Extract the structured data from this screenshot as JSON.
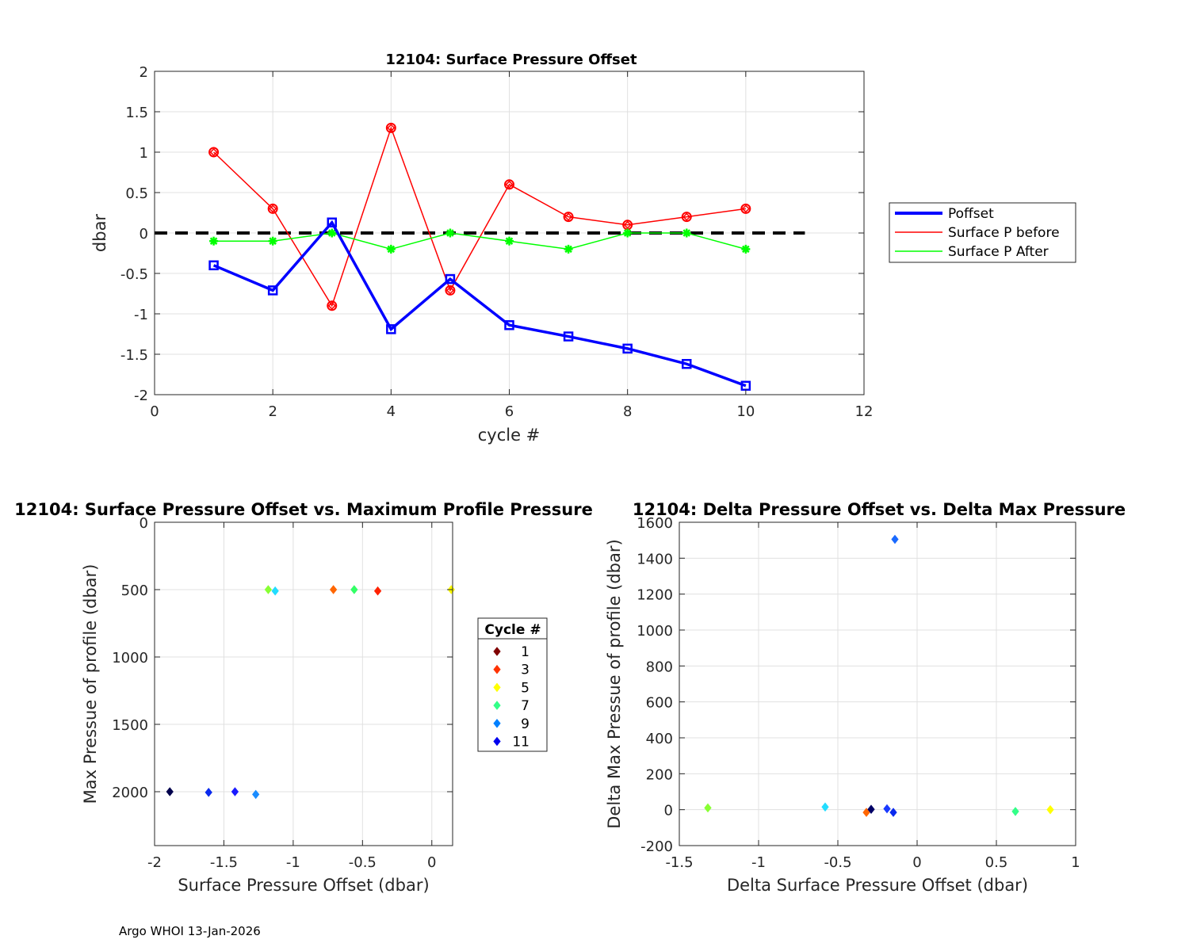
{
  "chart_data": [
    {
      "type": "line",
      "title": "12104: Surface Pressure Offset",
      "xlabel": "cycle #",
      "ylabel": "dbar",
      "xlim": [
        0,
        12
      ],
      "ylim": [
        -2,
        2
      ],
      "xticks": [
        0,
        2,
        4,
        6,
        8,
        10,
        12
      ],
      "yticks": [
        -2,
        -1.5,
        -1,
        -0.5,
        0,
        0.5,
        1,
        1.5,
        2
      ],
      "grid": true,
      "legend_position": "right",
      "zero_line": {
        "from_x": 0,
        "to_x": 11,
        "y": 0,
        "color": "#000000",
        "style": "dashed"
      },
      "series": [
        {
          "name": "Poffset",
          "color": "#0000ff",
          "marker": "square",
          "x": [
            1,
            2,
            3,
            4,
            5,
            6,
            7,
            8,
            9,
            10
          ],
          "y": [
            -0.4,
            -0.71,
            0.13,
            -1.19,
            -0.57,
            -1.14,
            -1.28,
            -1.43,
            -1.62,
            -1.89
          ]
        },
        {
          "name": "Surface P before",
          "color": "#ff0000",
          "marker": "diamond",
          "x": [
            1,
            2,
            3,
            4,
            5,
            6,
            7,
            8,
            9,
            10
          ],
          "y": [
            1.0,
            0.3,
            -0.9,
            1.3,
            -0.71,
            0.6,
            0.2,
            0.1,
            0.2,
            0.3
          ]
        },
        {
          "name": "Surface P After",
          "color": "#00ff00",
          "marker": "asterisk",
          "x": [
            1,
            2,
            3,
            4,
            5,
            6,
            7,
            8,
            9,
            10
          ],
          "y": [
            -0.1,
            -0.1,
            0.0,
            -0.2,
            0.0,
            -0.1,
            -0.2,
            0.0,
            0.0,
            -0.2
          ]
        }
      ]
    },
    {
      "type": "scatter",
      "title": "12104: Surface Pressure Offset vs. Maximum Profile Pressure",
      "xlabel": "Surface Pressure Offset (dbar)",
      "ylabel": "Max Pressue of profile (dbar)",
      "xlim": [
        -2,
        0.15
      ],
      "ylim": [
        0,
        2400
      ],
      "y_reversed": true,
      "xticks": [
        -2,
        -1.5,
        -1,
        -0.5,
        0
      ],
      "yticks": [
        0,
        500,
        1000,
        1500,
        2000
      ],
      "grid": true,
      "legend_title": "Cycle #",
      "legend_entries": [
        {
          "label": "1",
          "color": "#800000"
        },
        {
          "label": "3",
          "color": "#ff3300"
        },
        {
          "label": "5",
          "color": "#ffff00"
        },
        {
          "label": "7",
          "color": "#33ff88"
        },
        {
          "label": "9",
          "color": "#0080ff"
        },
        {
          "label": "11",
          "color": "#0000ee"
        }
      ],
      "points": [
        {
          "x": -0.39,
          "y": 510,
          "color": "#ff2200"
        },
        {
          "x": -0.71,
          "y": 500,
          "color": "#ff6600"
        },
        {
          "x": 0.14,
          "y": 500,
          "color": "#ffff00"
        },
        {
          "x": -0.56,
          "y": 500,
          "color": "#33ff66"
        },
        {
          "x": -1.18,
          "y": 500,
          "color": "#88ff33"
        },
        {
          "x": -1.13,
          "y": 510,
          "color": "#22ddff"
        },
        {
          "x": -1.27,
          "y": 2020,
          "color": "#1a8cff"
        },
        {
          "x": -1.42,
          "y": 2000,
          "color": "#1a1aff"
        },
        {
          "x": -1.61,
          "y": 2005,
          "color": "#0a2aee"
        },
        {
          "x": -1.89,
          "y": 2000,
          "color": "#00004d"
        }
      ]
    },
    {
      "type": "scatter",
      "title": "12104: Delta Pressure Offset vs. Delta Max Pressure",
      "xlabel": "Delta Surface Pressure Offset (dbar)",
      "ylabel": "Delta Max Pressue of profile (dbar)",
      "xlim": [
        -1.5,
        1
      ],
      "ylim": [
        -200,
        1600
      ],
      "xticks": [
        -1.5,
        -1,
        -0.5,
        0,
        0.5,
        1
      ],
      "yticks": [
        -200,
        0,
        200,
        400,
        600,
        800,
        1000,
        1200,
        1400,
        1600
      ],
      "grid": true,
      "points": [
        {
          "x": -0.14,
          "y": 1505,
          "color": "#1a6aff"
        },
        {
          "x": -1.32,
          "y": 10,
          "color": "#88ff33"
        },
        {
          "x": -0.58,
          "y": 15,
          "color": "#22ddff"
        },
        {
          "x": -0.32,
          "y": -15,
          "color": "#ff6600"
        },
        {
          "x": -0.29,
          "y": 2,
          "color": "#000066"
        },
        {
          "x": -0.19,
          "y": 5,
          "color": "#1a3aff"
        },
        {
          "x": -0.15,
          "y": -15,
          "color": "#0a2aee"
        },
        {
          "x": 0.62,
          "y": -10,
          "color": "#33ff88"
        },
        {
          "x": 0.84,
          "y": 0,
          "color": "#ffff00"
        }
      ]
    }
  ],
  "footer": "Argo WHOI 13-Jan-2026"
}
